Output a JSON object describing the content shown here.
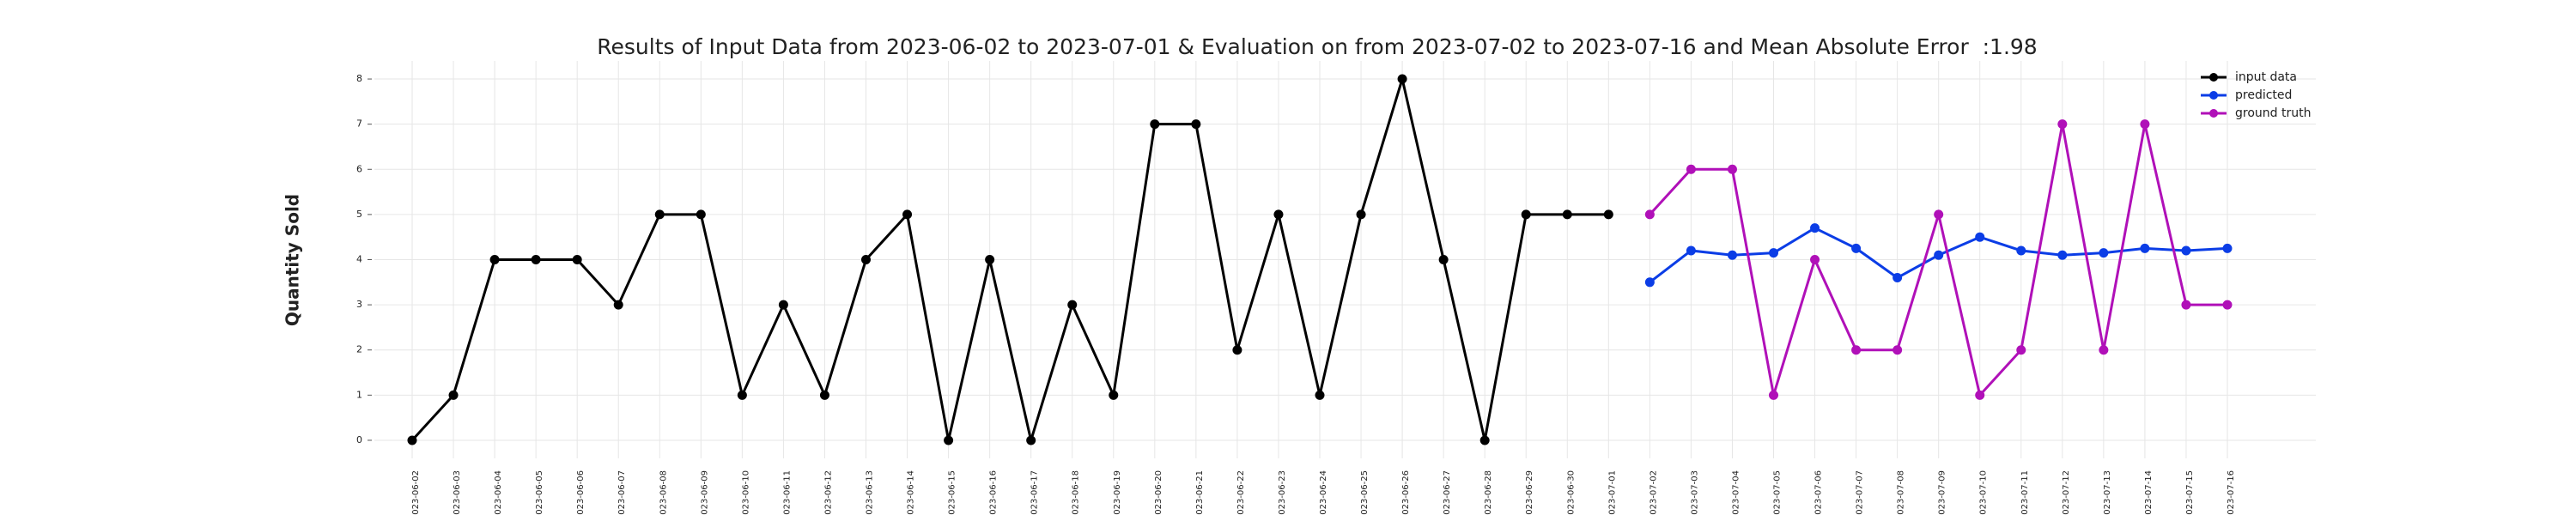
{
  "chart_data": {
    "type": "line",
    "title": "Results of Input Data from 2023-06-02 to 2023-07-01 & Evaluation on from 2023-07-02 to 2023-07-16 and Mean Absolute Error  :1.98",
    "ylabel": "Quantity Sold",
    "x": [
      "2023-06-02",
      "2023-06-03",
      "2023-06-04",
      "2023-06-05",
      "2023-06-06",
      "2023-06-07",
      "2023-06-08",
      "2023-06-09",
      "2023-06-10",
      "2023-06-11",
      "2023-06-12",
      "2023-06-13",
      "2023-06-14",
      "2023-06-15",
      "2023-06-16",
      "2023-06-17",
      "2023-06-18",
      "2023-06-19",
      "2023-06-20",
      "2023-06-21",
      "2023-06-22",
      "2023-06-23",
      "2023-06-24",
      "2023-06-25",
      "2023-06-26",
      "2023-06-27",
      "2023-06-28",
      "2023-06-29",
      "2023-06-30",
      "2023-07-01",
      "2023-07-02",
      "2023-07-03",
      "2023-07-04",
      "2023-07-05",
      "2023-07-06",
      "2023-07-07",
      "2023-07-08",
      "2023-07-09",
      "2023-07-10",
      "2023-07-11",
      "2023-07-12",
      "2023-07-13",
      "2023-07-14",
      "2023-07-15",
      "2023-07-16"
    ],
    "series": [
      {
        "name": "input data",
        "color": "#000000",
        "values": [
          0,
          1,
          4,
          4,
          4,
          3,
          5,
          5,
          1,
          3,
          1,
          4,
          5,
          0,
          4,
          0,
          3,
          1,
          7,
          7,
          2,
          5,
          1,
          5,
          8,
          4,
          0,
          5,
          5,
          5,
          null,
          null,
          null,
          null,
          null,
          null,
          null,
          null,
          null,
          null,
          null,
          null,
          null,
          null,
          null
        ]
      },
      {
        "name": "predicted",
        "color": "#0b3de6",
        "values": [
          null,
          null,
          null,
          null,
          null,
          null,
          null,
          null,
          null,
          null,
          null,
          null,
          null,
          null,
          null,
          null,
          null,
          null,
          null,
          null,
          null,
          null,
          null,
          null,
          null,
          null,
          null,
          null,
          null,
          null,
          3.5,
          4.2,
          4.1,
          4.15,
          4.7,
          4.25,
          3.6,
          4.1,
          4.5,
          4.2,
          4.1,
          4.15,
          4.25,
          4.2,
          4.25
        ]
      },
      {
        "name": "ground truth",
        "color": "#b010b8",
        "values": [
          null,
          null,
          null,
          null,
          null,
          null,
          null,
          null,
          null,
          null,
          null,
          null,
          null,
          null,
          null,
          null,
          null,
          null,
          null,
          null,
          null,
          null,
          null,
          null,
          null,
          null,
          null,
          null,
          null,
          null,
          5,
          6,
          6,
          1,
          4,
          2,
          2,
          5,
          1,
          2,
          7,
          2,
          7,
          3,
          3
        ]
      }
    ],
    "ylim": [
      -0.4,
      8.4
    ],
    "yticks": [
      0,
      1,
      2,
      3,
      4,
      5,
      6,
      7,
      8
    ],
    "grid": true,
    "legend": "upper right"
  }
}
